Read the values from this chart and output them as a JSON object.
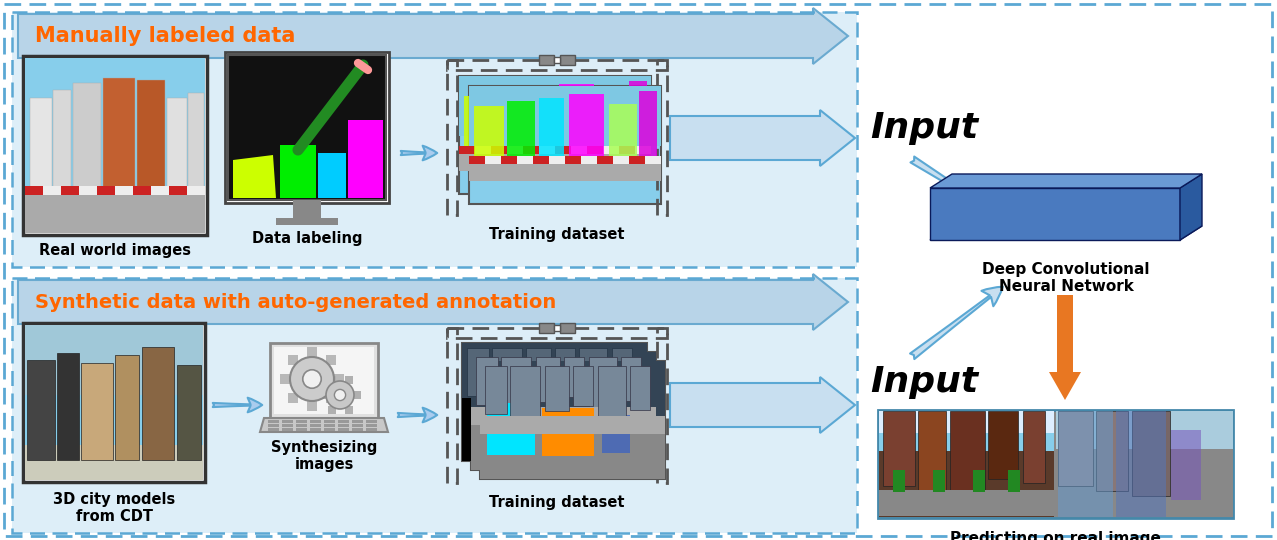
{
  "fig_width": 12.77,
  "fig_height": 5.4,
  "dpi": 100,
  "bg_color": "#ffffff",
  "panel_bg": "#ddeeff",
  "border_color": "#5ba8d4",
  "arrow_panel_color": "#aaccee",
  "arrow_small_color": "#8ab8d8",
  "orange_arrow": "#e87722",
  "orange_text": "#ff6600",
  "top_panel_label": "Manually labeled data",
  "bot_panel_label": "Synthetic data with auto-generated annotation",
  "label_real_world": "Real world images",
  "label_data_labeling": "Data labeling",
  "label_training_top": "Training dataset",
  "label_city": "3D city models\nfrom CDT",
  "label_synth": "Synthesizing\nimages",
  "label_training_bot": "Training dataset",
  "label_dcnn": "Deep Convolutional\nNeural Network",
  "label_predict": "Predicting on real image",
  "input_label": "Input"
}
